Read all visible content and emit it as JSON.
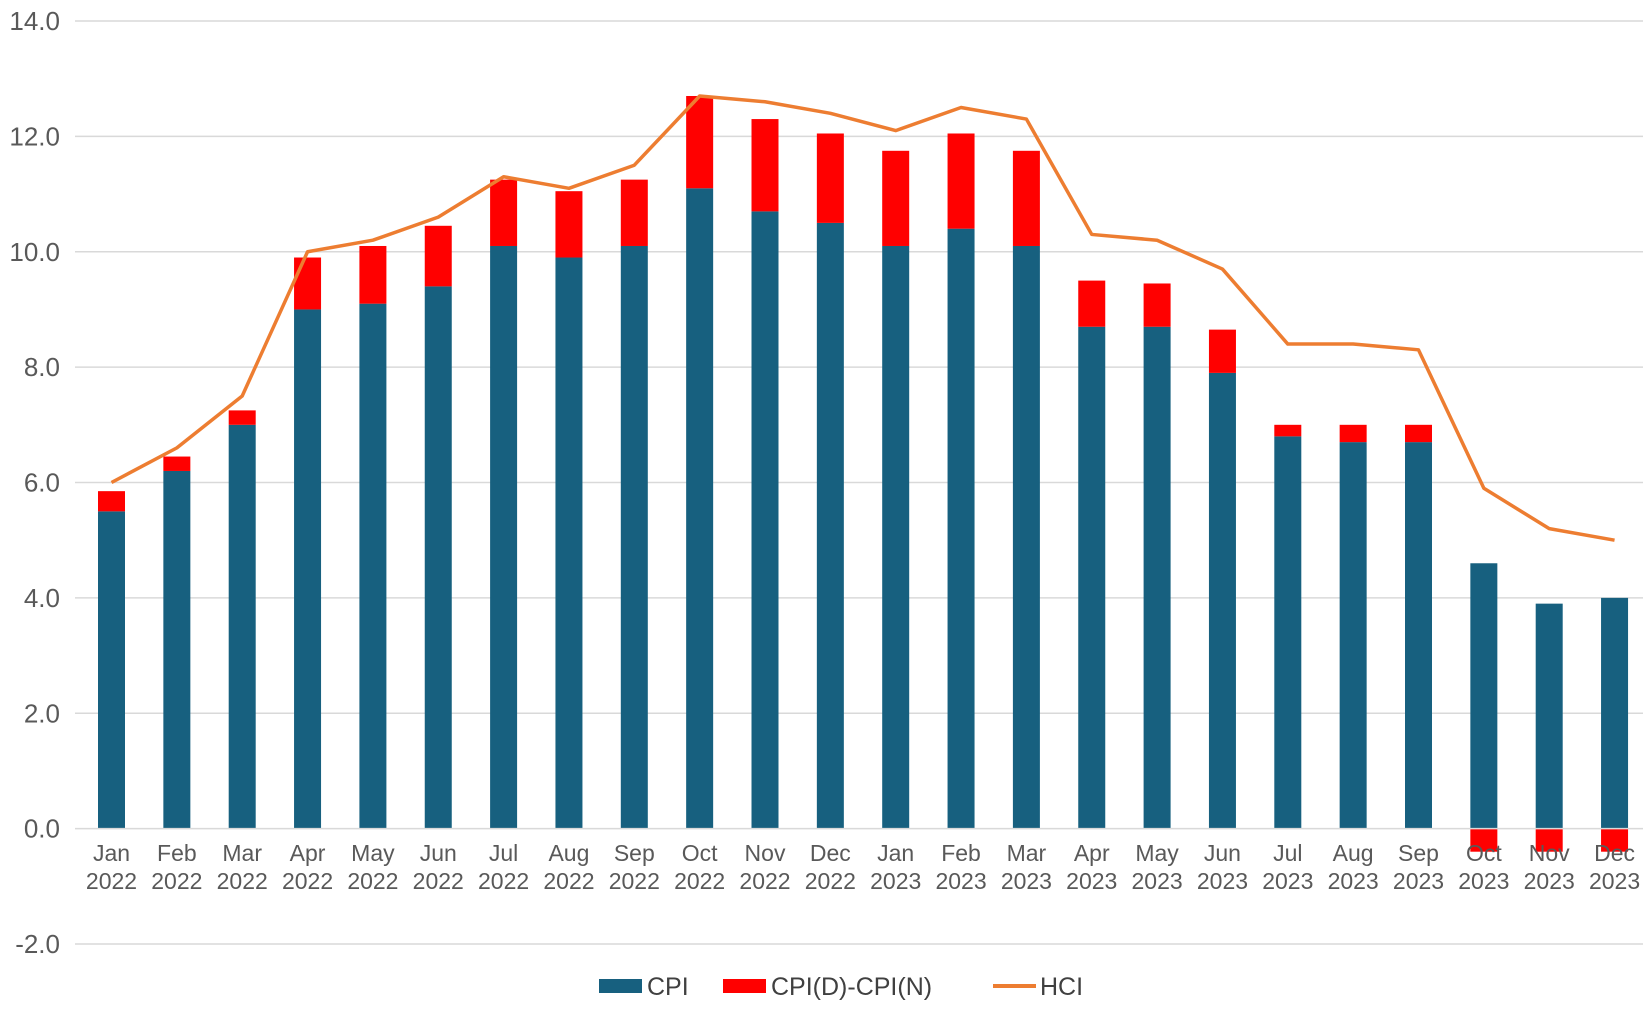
{
  "chart_data": {
    "type": "bar",
    "stacked": true,
    "categories": [
      [
        "Jan",
        "2022"
      ],
      [
        "Feb",
        "2022"
      ],
      [
        "Mar",
        "2022"
      ],
      [
        "Apr",
        "2022"
      ],
      [
        "May",
        "2022"
      ],
      [
        "Jun",
        "2022"
      ],
      [
        "Jul",
        "2022"
      ],
      [
        "Aug",
        "2022"
      ],
      [
        "Sep",
        "2022"
      ],
      [
        "Oct",
        "2022"
      ],
      [
        "Nov",
        "2022"
      ],
      [
        "Dec",
        "2022"
      ],
      [
        "Jan",
        "2023"
      ],
      [
        "Feb",
        "2023"
      ],
      [
        "Mar",
        "2023"
      ],
      [
        "Apr",
        "2023"
      ],
      [
        "May",
        "2023"
      ],
      [
        "Jun",
        "2023"
      ],
      [
        "Jul",
        "2023"
      ],
      [
        "Aug",
        "2023"
      ],
      [
        "Sep",
        "2023"
      ],
      [
        "Oct",
        "2023"
      ],
      [
        "Nov",
        "2023"
      ],
      [
        "Dec",
        "2023"
      ]
    ],
    "series": [
      {
        "name": "CPI",
        "kind": "bar",
        "color": "#17607f",
        "values": [
          5.5,
          6.2,
          7.0,
          9.0,
          9.1,
          9.4,
          10.1,
          9.9,
          10.1,
          11.1,
          10.7,
          10.5,
          10.1,
          10.4,
          10.1,
          8.7,
          8.7,
          7.9,
          6.8,
          6.7,
          6.7,
          4.6,
          3.9,
          4.0
        ]
      },
      {
        "name": "CPI(D)-CPI(N)",
        "kind": "bar",
        "color": "#ff0000",
        "values": [
          0.35,
          0.25,
          0.25,
          0.9,
          1.0,
          1.05,
          1.15,
          1.15,
          1.15,
          1.6,
          1.6,
          1.55,
          1.65,
          1.65,
          1.65,
          0.8,
          0.75,
          0.75,
          0.2,
          0.3,
          0.3,
          -0.4,
          -0.4,
          -0.4
        ]
      },
      {
        "name": "HCI",
        "kind": "line",
        "color": "#ed7d31",
        "values": [
          6.0,
          6.6,
          7.5,
          10.0,
          10.2,
          10.6,
          11.3,
          11.1,
          11.5,
          12.7,
          12.6,
          12.4,
          12.1,
          12.5,
          12.3,
          10.3,
          10.2,
          9.7,
          8.4,
          8.4,
          8.3,
          5.9,
          5.2,
          5.0
        ]
      }
    ],
    "ylim": [
      -2.0,
      14.0
    ],
    "yticks": [
      "-2.0",
      "0.0",
      "2.0",
      "4.0",
      "6.0",
      "8.0",
      "10.0",
      "12.0",
      "14.0"
    ],
    "grid": true,
    "legend_position": "bottom"
  }
}
